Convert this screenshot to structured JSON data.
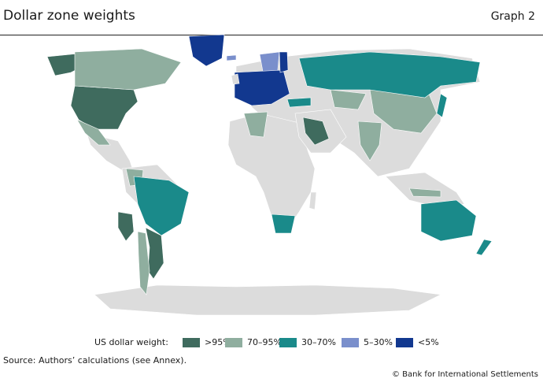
{
  "header": {
    "title": "Dollar zone weights",
    "graph_label": "Graph 2"
  },
  "legend": {
    "title": "US dollar weight:",
    "items": [
      {
        "label": ">95%",
        "color": "#3f6b5e"
      },
      {
        "label": "70–95%",
        "color": "#8fae9f"
      },
      {
        "label": "30–70%",
        "color": "#1a8a8a"
      },
      {
        "label": "5–30%",
        "color": "#7a8fcc"
      },
      {
        "label": "<5%",
        "color": "#12388f"
      }
    ]
  },
  "map": {
    "no_data_color": "#dcdcdc"
  },
  "footer": {
    "source": "Source: Authors’ calculations (see Annex).",
    "copyright": "© Bank for International Settlements"
  }
}
